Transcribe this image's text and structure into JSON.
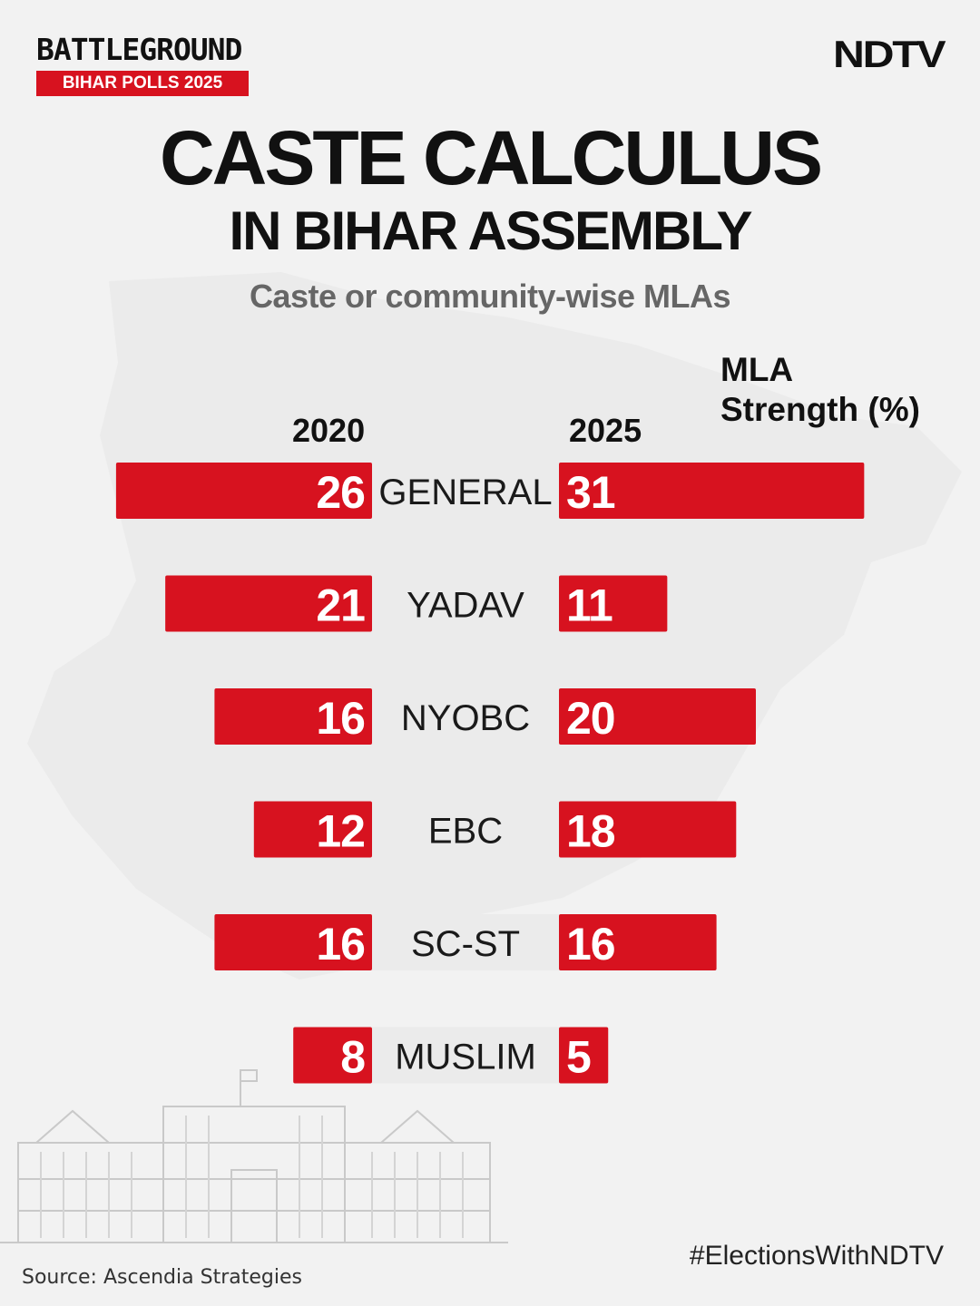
{
  "header": {
    "brand_title": "BATTLEGROUND",
    "brand_subtitle": "BIHAR POLLS 2025",
    "publisher": "NDTV"
  },
  "title": "CASTE CALCULUS",
  "subtitle": "IN BIHAR ASSEMBLY",
  "caption": "Caste or community-wise MLAs",
  "legend_right": [
    "MLA",
    "Strength (%)"
  ],
  "footer": {
    "source": "Source: Ascendia Strategies",
    "hashtag": "#ElectionsWithNDTV"
  },
  "colors": {
    "bar": "#d7121f",
    "background": "#f2f2f2"
  },
  "chart_data": {
    "type": "bar",
    "orientation": "horizontal-butterfly",
    "title": "CASTE CALCULUS IN BIHAR ASSEMBLY",
    "subtitle": "Caste or community-wise MLAs",
    "value_label": "MLA Strength (%)",
    "categories": [
      "GENERAL",
      "YADAV",
      "NYOBC",
      "EBC",
      "SC-ST",
      "MUSLIM"
    ],
    "series": [
      {
        "name": "2020",
        "values": [
          26,
          21,
          16,
          12,
          16,
          8
        ]
      },
      {
        "name": "2025",
        "values": [
          31,
          11,
          20,
          18,
          16,
          5
        ]
      }
    ],
    "xlim": [
      0,
      31
    ]
  }
}
